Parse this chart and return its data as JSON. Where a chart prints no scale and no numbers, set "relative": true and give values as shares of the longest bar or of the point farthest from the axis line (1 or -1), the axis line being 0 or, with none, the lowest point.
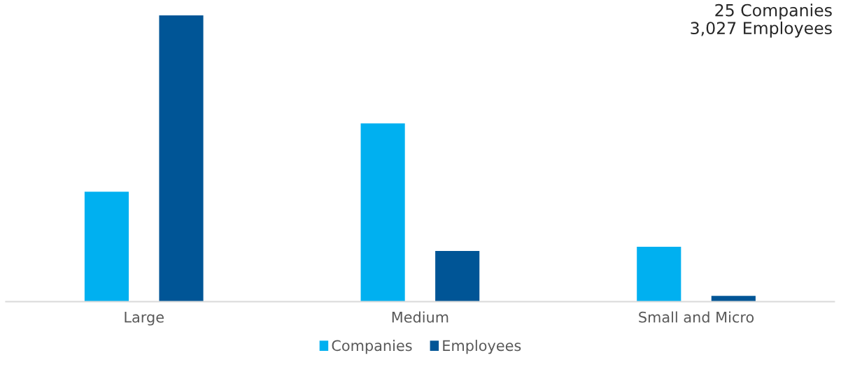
{
  "chart_data": {
    "type": "bar",
    "relative": true,
    "categories": [
      "Large",
      "Medium",
      "Small and Micro"
    ],
    "series": [
      {
        "name": "Companies",
        "color": "#00b0f0",
        "values": [
          0.384,
          0.623,
          0.192
        ]
      },
      {
        "name": "Employees",
        "color": "#005596",
        "values": [
          1,
          0.177,
          0.02
        ]
      }
    ],
    "annotations": [
      "25 Companies",
      "3,027 Employees"
    ],
    "legend": "bottom",
    "grid": false
  }
}
